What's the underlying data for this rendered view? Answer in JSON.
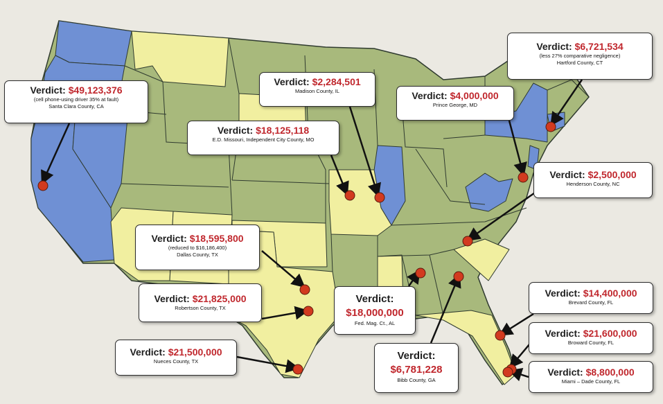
{
  "colors": {
    "background": "#ebe9e2",
    "state_blue": "#6f90d4",
    "state_green": "#a8b97c",
    "state_yellow": "#f1efa0",
    "amount_red": "#c0272d",
    "pin_red": "#d23a1f"
  },
  "verdicts": [
    {
      "label": "Verdict:",
      "amount": "$49,123,376",
      "note": "(cell phone-using  driver 35% at fault)",
      "county": "Santa Clara County, CA"
    },
    {
      "label": "Verdict:",
      "amount": "$2,284,501",
      "note": "",
      "county": "Madison County, IL"
    },
    {
      "label": "Verdict:",
      "amount": "$4,000,000",
      "note": "",
      "county": "Prince George, MD"
    },
    {
      "label": "Verdict:",
      "amount": "$6,721,534",
      "note": "(less 27% comparative negligence)",
      "county": "Hartford County, CT"
    },
    {
      "label": "Verdict:",
      "amount": "$18,125,118",
      "note": "",
      "county": "E.D. Missouri, Independent City County,  MO"
    },
    {
      "label": "Verdict:",
      "amount": "$2,500,000",
      "note": "",
      "county": "Henderson County, NC"
    },
    {
      "label": "Verdict:",
      "amount": "$18,595,800",
      "note": "(reduced to $16,186,400)",
      "county": "Dallas County, TX"
    },
    {
      "label": "Verdict:",
      "amount": "$21,825,000",
      "note": "",
      "county": "Robertson County, TX"
    },
    {
      "label": "Verdict:",
      "amount": "$18,000,000",
      "note": "",
      "county": "Fed. Mag. Ct., AL"
    },
    {
      "label": "Verdict:",
      "amount": "$14,400,000",
      "note": "",
      "county": "Brevard County,  FL"
    },
    {
      "label": "Verdict:",
      "amount": "$21,600,000",
      "note": "",
      "county": "Broward  County, FL"
    },
    {
      "label": "Verdict:",
      "amount": "$21,500,000",
      "note": "",
      "county": "Nueces County, TX"
    },
    {
      "label": "Verdict:",
      "amount": "$6,781,228",
      "note": "",
      "county": "Bibb County, GA"
    },
    {
      "label": "Verdict:",
      "amount": "$8,800,000",
      "note": "",
      "county": "Miami – Dade County, FL"
    }
  ]
}
